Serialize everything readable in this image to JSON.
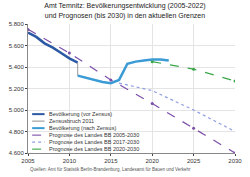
{
  "chart_data": {
    "type": "line",
    "title": "Amt Temnitz: Bevölkerungsentwicklung (2005-2022)\nund Prognosen (bis 2030) in den aktuellen Grenzen",
    "xlim": [
      2005,
      2030
    ],
    "xticks": [
      2005,
      2010,
      2015,
      2020,
      2025,
      2030
    ],
    "ylim": [
      4600,
      5800
    ],
    "yticks": [
      {
        "value": 4600,
        "label": "4.600"
      },
      {
        "value": 4800,
        "label": "4.800"
      },
      {
        "value": 5000,
        "label": "5.000"
      },
      {
        "value": 5200,
        "label": "5.200"
      },
      {
        "value": 5400,
        "label": "5.400"
      },
      {
        "value": 5600,
        "label": "5.600"
      },
      {
        "value": 5800,
        "label": "5.800"
      }
    ],
    "grid": true,
    "series": [
      {
        "name": "Bevölkerung (vor Zensus)",
        "color": "#2b59a3",
        "line_style": "solid",
        "x": [
          2005,
          2006,
          2007,
          2008,
          2009,
          2010,
          2011
        ],
        "values": [
          5720,
          5680,
          5620,
          5580,
          5530,
          5480,
          5440
        ]
      },
      {
        "name": "Zensusbruch 2011",
        "color": "#9a9a9a",
        "line_style": "solid",
        "x": [
          2011,
          2011
        ],
        "values": [
          5320,
          5440
        ]
      },
      {
        "name": "Bevölkerung (nach Zensus)",
        "color": "#3a9bd5",
        "line_style": "solid",
        "x": [
          2011,
          2012,
          2013,
          2014,
          2015,
          2016,
          2017,
          2018,
          2019,
          2020,
          2021,
          2022
        ],
        "values": [
          5320,
          5300,
          5280,
          5260,
          5250,
          5280,
          5430,
          5450,
          5460,
          5470,
          5470,
          5460
        ]
      },
      {
        "name": "Prognose des Landes BB 2005-2030",
        "color": "#7b4fa8",
        "line_style": "dash",
        "marker": "circle",
        "x": [
          2005,
          2010,
          2015,
          2020,
          2025,
          2030
        ],
        "values": [
          5750,
          5530,
          5280,
          5060,
          4830,
          4600
        ]
      },
      {
        "name": "Prognose des Landes BB 2017-2030",
        "color": "#8f9de3",
        "line_style": "dot",
        "x": [
          2016,
          2020,
          2025,
          2030
        ],
        "values": [
          5250,
          5180,
          5000,
          4800
        ]
      },
      {
        "name": "Prognose des Landes BB 2020-2030",
        "color": "#3aa64a",
        "line_style": "dash",
        "marker": "circle",
        "x": [
          2020,
          2025,
          2030
        ],
        "values": [
          5450,
          5380,
          5270
        ]
      }
    ],
    "annotations": [
      "Quellen: Amt für Statistik Berlin-Brandenburg, Landesamt für Bauen und Verkehr"
    ]
  }
}
